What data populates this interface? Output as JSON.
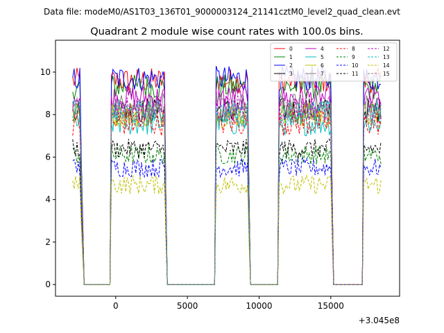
{
  "chart_data": {
    "type": "line",
    "suptitle": "Data file: modeM0/AS1T03_136T01_9000003124_21141cztM0_level2_quad_clean.evt",
    "title": "Quadrant 2 module wise count rates with 100.0s bins.",
    "xlabel": "",
    "ylabel": "",
    "x_offset_label": "+3.045e8",
    "xlim": [
      -4200,
      19800
    ],
    "ylim": [
      -0.55,
      11.5
    ],
    "xticks": [
      0,
      5000,
      10000,
      15000
    ],
    "xtick_labels": [
      "0",
      "5000",
      "10000",
      "15000"
    ],
    "yticks": [
      0,
      2,
      4,
      6,
      8,
      10
    ],
    "ytick_labels": [
      "0",
      "2",
      "4",
      "6",
      "8",
      "10"
    ],
    "bin_width_s": 100,
    "segments": [
      {
        "start": -3000,
        "end": -2500,
        "edge_ramp_end": -2200
      },
      {
        "start": -300,
        "end": 3400,
        "edge_ramp_end": 3600
      },
      {
        "start": 7000,
        "end": 9200,
        "edge_ramp_end": 9400
      },
      {
        "start": 11400,
        "end": 15000,
        "edge_ramp_end": 15200
      },
      {
        "start": 17300,
        "end": 18500,
        "edge_ramp_end": 18500
      }
    ],
    "series": [
      {
        "name": "0",
        "color": "#ff0000",
        "style": "solid",
        "level": 9.6
      },
      {
        "name": "1",
        "color": "#008000",
        "style": "solid",
        "level": 9.3
      },
      {
        "name": "2",
        "color": "#0000ff",
        "style": "solid",
        "level": 9.7
      },
      {
        "name": "3",
        "color": "#000000",
        "style": "solid",
        "level": 8.2
      },
      {
        "name": "4",
        "color": "#bf00bf",
        "style": "solid",
        "level": 8.8
      },
      {
        "name": "5",
        "color": "#00bfbf",
        "style": "solid",
        "level": 7.6
      },
      {
        "name": "6",
        "color": "#bfbf00",
        "style": "solid",
        "level": 8.0
      },
      {
        "name": "7",
        "color": "#808080",
        "style": "solid",
        "level": 8.4
      },
      {
        "name": "8",
        "color": "#ff0000",
        "style": "dashed",
        "level": 7.6
      },
      {
        "name": "9",
        "color": "#008000",
        "style": "dashed",
        "level": 6.1
      },
      {
        "name": "10",
        "color": "#0000ff",
        "style": "dashed",
        "level": 5.5
      },
      {
        "name": "11",
        "color": "#000000",
        "style": "dashed",
        "level": 6.4
      },
      {
        "name": "12",
        "color": "#bf00bf",
        "style": "dashed",
        "level": 8.3
      },
      {
        "name": "13",
        "color": "#00bfbf",
        "style": "dashed",
        "level": 8.1
      },
      {
        "name": "14",
        "color": "#bfbf00",
        "style": "dashed",
        "level": 4.7
      },
      {
        "name": "15",
        "color": "#808080",
        "style": "dashed",
        "level": 8.0
      }
    ],
    "legend_location": "top-right",
    "legend_columns": 4
  }
}
